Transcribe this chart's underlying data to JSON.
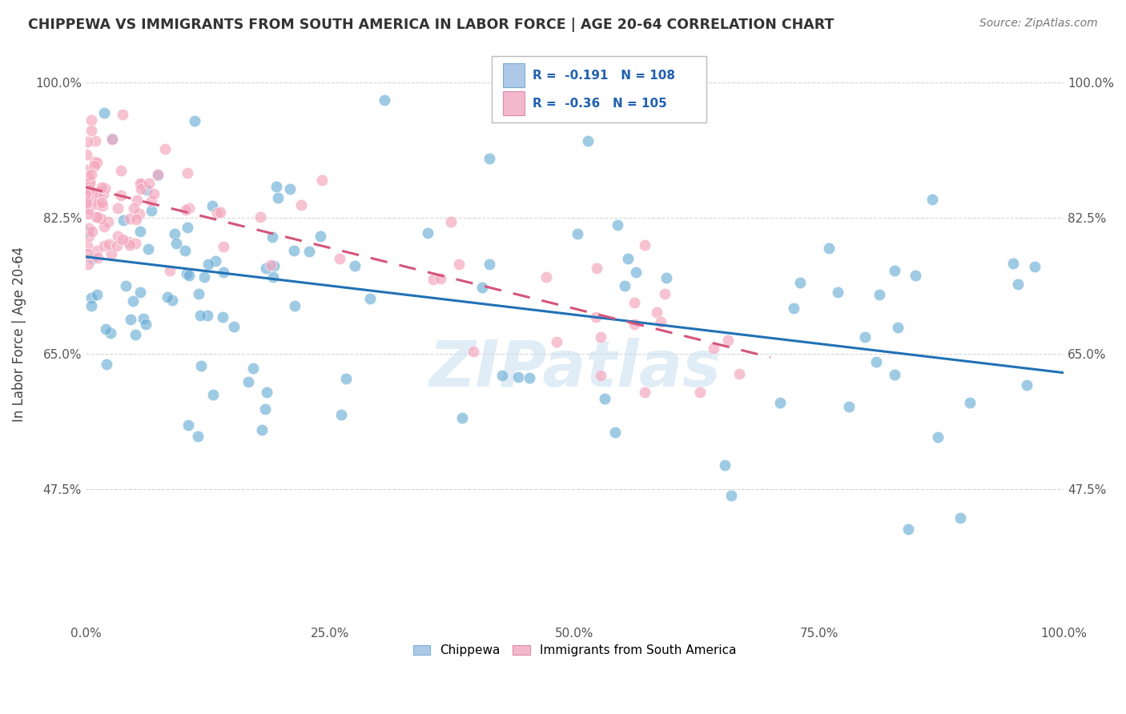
{
  "title": "CHIPPEWA VS IMMIGRANTS FROM SOUTH AMERICA IN LABOR FORCE | AGE 20-64 CORRELATION CHART",
  "source": "Source: ZipAtlas.com",
  "ylabel": "In Labor Force | Age 20-64",
  "xlim": [
    0.0,
    1.0
  ],
  "ylim": [
    0.3,
    1.05
  ],
  "yticks": [
    0.475,
    0.65,
    0.825,
    1.0
  ],
  "ytick_labels": [
    "47.5%",
    "65.0%",
    "82.5%",
    "100.0%"
  ],
  "xtick_labels": [
    "0.0%",
    "25.0%",
    "50.0%",
    "75.0%",
    "100.0%"
  ],
  "xticks": [
    0.0,
    0.25,
    0.5,
    0.75,
    1.0
  ],
  "blue_color": "#6baed6",
  "pink_color": "#f4a8bf",
  "blue_line_color": "#2171b5",
  "pink_line_color": "#d4557a",
  "legend_blue_fill": "#aec9e8",
  "legend_pink_fill": "#f4b8cc",
  "R_blue": -0.191,
  "N_blue": 108,
  "R_pink": -0.36,
  "N_pink": 105,
  "blue_trend_y_start": 0.775,
  "blue_trend_y_end": 0.625,
  "pink_trend_y_start": 0.865,
  "pink_trend_y_end": 0.645,
  "pink_trend_x_end": 0.7,
  "watermark": "ZIPatlas",
  "legend_labels": [
    "Chippewa",
    "Immigrants from South America"
  ],
  "grid_color": "#cccccc",
  "background_color": "#ffffff",
  "title_color": "#333333",
  "axis_color": "#555555",
  "watermark_color": "#c8dff0"
}
